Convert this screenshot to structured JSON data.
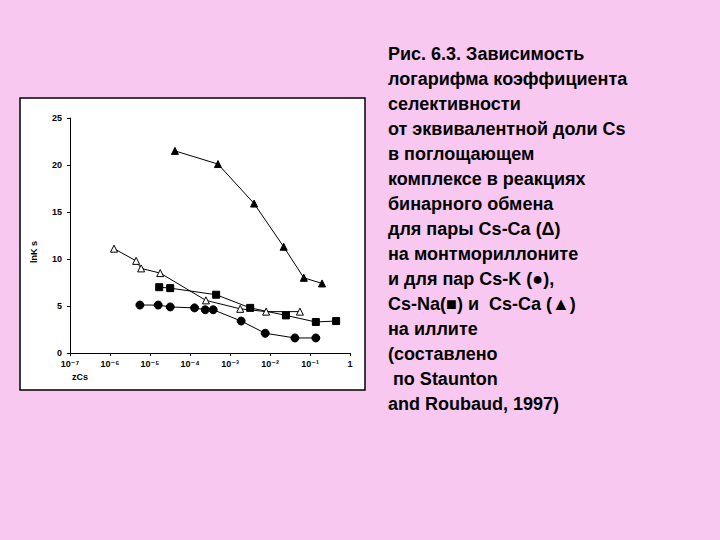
{
  "chart_data": {
    "type": "line",
    "title": "Рис. 6.3. Зависимость\nлогарифма коэффициента\nселективности\nот эквивалентной доли Cs\nв поглощающем\nкомплексе в реакциях\nбинарного обмена\nдля пары Cs-Ca (Δ)\nна монтмориллоните\nи для пар Cs-K (●),\nCs-Na(■) и  Cs-Ca (▲)\nна иллите\n(составлено\n по Staunton\nand Roubaud, 1997)",
    "x_label": "zCs",
    "y_label": "lnK s",
    "log": "x",
    "grid": false,
    "xlim": [
      1e-07,
      1
    ],
    "xticks": [
      {
        "value": 1e-07,
        "label": "10⁻⁷"
      },
      {
        "value": 1e-06,
        "label": "10⁻⁶"
      },
      {
        "value": 1e-05,
        "label": "10⁻⁵"
      },
      {
        "value": 0.0001,
        "label": "10⁻⁴"
      },
      {
        "value": 0.001,
        "label": "10⁻³"
      },
      {
        "value": 0.01,
        "label": "10⁻²"
      },
      {
        "value": 0.1,
        "label": "10⁻¹"
      },
      1
    ],
    "ylim": [
      0,
      25
    ],
    "yticks": [
      0,
      5,
      10,
      15,
      20,
      25
    ],
    "series": [
      {
        "color": "#000000",
        "marker": "triangle",
        "x": [
          4.2e-05,
          0.0005,
          0.004,
          0.022,
          0.07,
          0.2
        ],
        "values": [
          21.5,
          20.1,
          15.9,
          11.3,
          8.0,
          7.4
        ]
      },
      {
        "color": "#000000",
        "marker": "open-triangle",
        "x": [
          1.26e-06,
          4.5e-06,
          6e-06,
          1.8e-05,
          0.00025,
          0.0018,
          0.008,
          0.056
        ],
        "values": [
          11.1,
          9.8,
          9.0,
          8.5,
          5.6,
          4.7,
          4.4,
          4.4
        ]
      },
      {
        "color": "#000000",
        "marker": "square",
        "x": [
          1.7e-05,
          3.2e-05,
          0.00045,
          0.0032,
          0.025,
          0.14,
          0.45
        ],
        "values": [
          7.0,
          6.9,
          6.2,
          4.8,
          4.0,
          3.3,
          3.4
        ]
      },
      {
        "color": "#000000",
        "marker": "circle",
        "x": [
          5.6e-06,
          1.6e-05,
          3.2e-05,
          0.00013,
          0.00024,
          0.00038,
          0.0019,
          0.0076,
          0.042,
          0.14
        ],
        "values": [
          5.1,
          5.1,
          4.9,
          4.8,
          4.6,
          4.6,
          3.4,
          2.1,
          1.6,
          1.6
        ]
      }
    ]
  }
}
